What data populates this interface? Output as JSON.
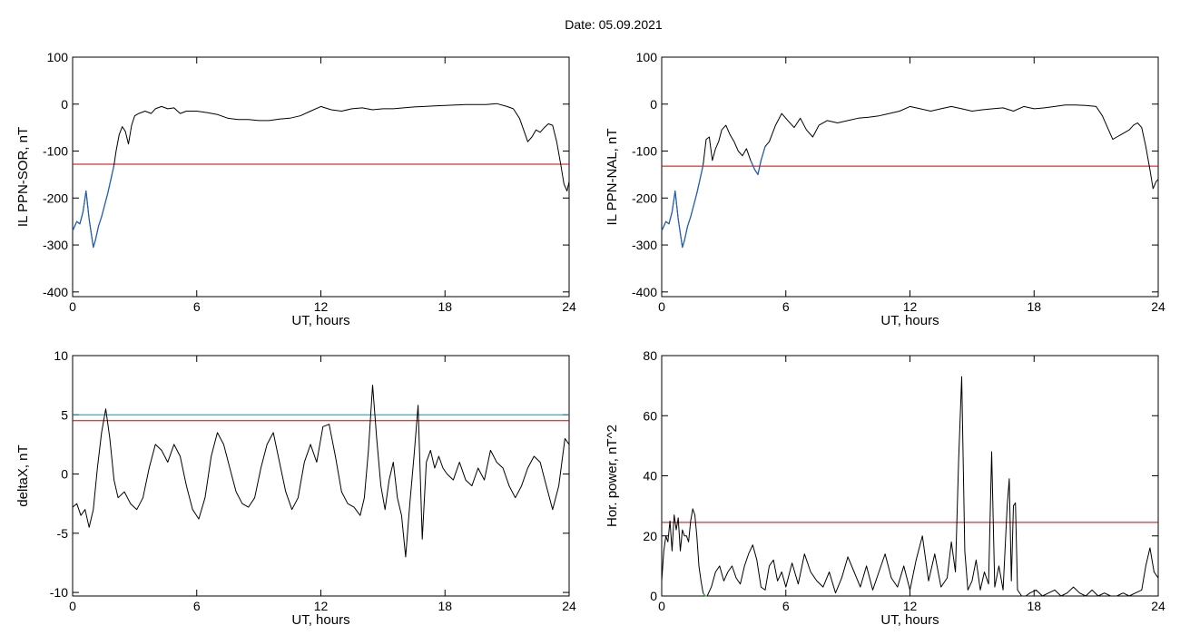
{
  "title": "Date:  05.09.2021",
  "chart_data": [
    {
      "id": "il-ppn-sor",
      "type": "line",
      "xlabel": "UT, hours",
      "ylabel": "IL PPN-SOR, nT",
      "xlim": [
        0,
        24
      ],
      "ylim": [
        -410,
        100
      ],
      "xticks": [
        0,
        6,
        12,
        18,
        24
      ],
      "yticks": [
        -400,
        -300,
        -200,
        -100,
        0,
        100
      ],
      "grid": false,
      "colors": {
        "series": "#000000",
        "highlight": "#1f5fbf",
        "threshold": "#d00000"
      },
      "thresholds": [
        {
          "y": -128,
          "color": "#d00000"
        }
      ],
      "series": [
        {
          "x": [
            0,
            0.2,
            0.35,
            0.5,
            0.65,
            0.8,
            0.9,
            1.0,
            1.1,
            1.25,
            1.4,
            1.55,
            1.7,
            1.85,
            2.0,
            2.1,
            2.25,
            2.4,
            2.55,
            2.7,
            2.85,
            3.0,
            3.2,
            3.5,
            3.8,
            4.0,
            4.3,
            4.6,
            4.9,
            5.2,
            5.5,
            6.0,
            6.5,
            7.0,
            7.5,
            8.0,
            8.5,
            9.0,
            9.5,
            10.0,
            10.5,
            11.0,
            11.5,
            12.0,
            12.5,
            13.0,
            13.5,
            14.0,
            14.5,
            15.0,
            15.5,
            16.0,
            16.5,
            17.0,
            17.5,
            18.0,
            18.5,
            19.0,
            19.5,
            20.0,
            20.5,
            21.0,
            21.3,
            21.6,
            21.8,
            22.0,
            22.2,
            22.4,
            22.6,
            22.8,
            23.0,
            23.2,
            23.4,
            23.6,
            23.75,
            23.9,
            24.0
          ],
          "y": [
            -270,
            -250,
            -255,
            -230,
            -185,
            -245,
            -275,
            -305,
            -290,
            -260,
            -240,
            -215,
            -190,
            -160,
            -130,
            -100,
            -65,
            -48,
            -58,
            -85,
            -45,
            -25,
            -20,
            -15,
            -20,
            -10,
            -5,
            -10,
            -8,
            -20,
            -15,
            -15,
            -18,
            -22,
            -30,
            -33,
            -33,
            -35,
            -35,
            -32,
            -30,
            -25,
            -15,
            -5,
            -12,
            -15,
            -10,
            -8,
            -12,
            -10,
            -10,
            -8,
            -6,
            -5,
            -4,
            -3,
            -2,
            -1,
            -1,
            -1,
            1,
            -5,
            -10,
            -30,
            -55,
            -80,
            -70,
            -55,
            -60,
            -50,
            -42,
            -45,
            -80,
            -130,
            -170,
            -185,
            -165
          ]
        },
        {
          "x": [
            0,
            0.2,
            0.35,
            0.5,
            0.65,
            0.8,
            0.9,
            1.0,
            1.1,
            1.25,
            1.4,
            1.55,
            1.7,
            1.85,
            2.0
          ],
          "y": [
            -270,
            -250,
            -255,
            -230,
            -185,
            -245,
            -275,
            -305,
            -290,
            -260,
            -240,
            -215,
            -190,
            -160,
            -130
          ]
        }
      ]
    },
    {
      "id": "il-ppn-nal",
      "type": "line",
      "xlabel": "UT, hours",
      "ylabel": "IL PPN-NAL, nT",
      "xlim": [
        0,
        24
      ],
      "ylim": [
        -410,
        100
      ],
      "xticks": [
        0,
        6,
        12,
        18,
        24
      ],
      "yticks": [
        -400,
        -300,
        -200,
        -100,
        0,
        100
      ],
      "grid": false,
      "colors": {
        "series": "#000000",
        "highlight": "#1f5fbf",
        "threshold": "#d00000"
      },
      "thresholds": [
        {
          "y": -132,
          "color": "#d00000"
        }
      ],
      "series": [
        {
          "x": [
            0,
            0.2,
            0.35,
            0.5,
            0.65,
            0.8,
            0.9,
            1.0,
            1.1,
            1.25,
            1.4,
            1.55,
            1.7,
            1.85,
            2.0,
            2.15,
            2.3,
            2.45,
            2.6,
            2.75,
            2.9,
            3.1,
            3.3,
            3.5,
            3.7,
            3.9,
            4.1,
            4.3,
            4.5,
            4.65,
            4.8,
            5.0,
            5.2,
            5.5,
            5.8,
            6.1,
            6.4,
            6.7,
            7.0,
            7.3,
            7.6,
            8.0,
            8.5,
            9.0,
            9.5,
            10.0,
            10.5,
            11.0,
            11.5,
            12.0,
            12.5,
            13.0,
            13.5,
            14.0,
            14.5,
            15.0,
            15.5,
            16.0,
            16.5,
            17.0,
            17.5,
            18.0,
            18.5,
            19.0,
            19.5,
            20.0,
            20.5,
            21.0,
            21.3,
            21.6,
            21.8,
            22.0,
            22.2,
            22.4,
            22.6,
            22.8,
            23.0,
            23.2,
            23.4,
            23.6,
            23.75,
            23.9,
            24.0
          ],
          "y": [
            -270,
            -250,
            -255,
            -230,
            -185,
            -245,
            -275,
            -305,
            -290,
            -260,
            -240,
            -215,
            -190,
            -160,
            -130,
            -75,
            -70,
            -120,
            -95,
            -80,
            -55,
            -45,
            -65,
            -80,
            -100,
            -110,
            -95,
            -120,
            -140,
            -150,
            -120,
            -90,
            -80,
            -45,
            -20,
            -35,
            -50,
            -30,
            -55,
            -70,
            -45,
            -35,
            -40,
            -35,
            -30,
            -28,
            -25,
            -20,
            -15,
            -5,
            -10,
            -15,
            -10,
            -5,
            -10,
            -15,
            -12,
            -10,
            -8,
            -15,
            -5,
            -10,
            -8,
            -5,
            -2,
            -2,
            -3,
            -5,
            -25,
            -55,
            -75,
            -70,
            -65,
            -60,
            -55,
            -45,
            -40,
            -50,
            -90,
            -140,
            -180,
            -165,
            -160
          ]
        },
        {
          "x": [
            0,
            0.2,
            0.35,
            0.5,
            0.65,
            0.8,
            0.9,
            1.0,
            1.1,
            1.25,
            1.4,
            1.55,
            1.7,
            1.85,
            2.0
          ],
          "y": [
            -270,
            -250,
            -255,
            -230,
            -185,
            -245,
            -275,
            -305,
            -290,
            -260,
            -240,
            -215,
            -190,
            -160,
            -130
          ]
        },
        {
          "x": [
            4.3,
            4.5,
            4.65,
            4.8,
            5.0
          ],
          "y": [
            -120,
            -140,
            -150,
            -120,
            -90
          ]
        }
      ]
    },
    {
      "id": "deltax",
      "type": "line",
      "xlabel": "UT, hours",
      "ylabel": "deltaX, nT",
      "xlim": [
        0,
        24
      ],
      "ylim": [
        -10.3,
        10
      ],
      "xticks": [
        0,
        6,
        12,
        18,
        24
      ],
      "yticks": [
        -10,
        -5,
        0,
        5,
        10
      ],
      "grid": false,
      "colors": {
        "series": "#000000",
        "threshold": "#d00000",
        "threshold2": "#1f8fa0"
      },
      "thresholds": [
        {
          "y": 5.0,
          "color": "#1f8fa0"
        },
        {
          "y": 4.5,
          "color": "#d00000"
        }
      ],
      "series": [
        {
          "x": [
            0,
            0.2,
            0.4,
            0.6,
            0.8,
            1.0,
            1.2,
            1.4,
            1.6,
            1.8,
            2.0,
            2.2,
            2.5,
            2.8,
            3.1,
            3.4,
            3.7,
            4.0,
            4.3,
            4.6,
            4.9,
            5.2,
            5.5,
            5.8,
            6.1,
            6.4,
            6.7,
            7.0,
            7.3,
            7.6,
            7.9,
            8.2,
            8.5,
            8.8,
            9.1,
            9.4,
            9.7,
            10.0,
            10.3,
            10.6,
            10.9,
            11.2,
            11.5,
            11.8,
            12.1,
            12.4,
            12.7,
            13.0,
            13.3,
            13.6,
            13.9,
            14.1,
            14.3,
            14.5,
            14.7,
            14.9,
            15.1,
            15.3,
            15.5,
            15.7,
            15.9,
            16.1,
            16.3,
            16.5,
            16.7,
            16.9,
            17.1,
            17.3,
            17.5,
            17.7,
            17.9,
            18.1,
            18.4,
            18.7,
            19.0,
            19.3,
            19.6,
            19.9,
            20.2,
            20.5,
            20.8,
            21.1,
            21.4,
            21.7,
            22.0,
            22.3,
            22.6,
            22.9,
            23.2,
            23.5,
            23.8,
            24.0
          ],
          "y": [
            -2.8,
            -2.5,
            -3.5,
            -3.0,
            -4.5,
            -3.0,
            0.5,
            3.5,
            5.5,
            3.0,
            -0.5,
            -2.0,
            -1.5,
            -2.5,
            -3.0,
            -2.0,
            0.5,
            2.5,
            2.0,
            1.0,
            2.5,
            1.5,
            -1.0,
            -3.0,
            -3.8,
            -2.0,
            1.5,
            3.5,
            2.5,
            0.5,
            -1.5,
            -2.5,
            -2.8,
            -2.0,
            0.5,
            2.5,
            3.5,
            1.0,
            -1.5,
            -3.0,
            -2.0,
            1.0,
            2.5,
            1.0,
            4.0,
            4.2,
            1.5,
            -1.5,
            -2.5,
            -2.8,
            -3.5,
            -2.0,
            2.0,
            7.5,
            3.0,
            -1.0,
            -3.0,
            -0.5,
            1.0,
            -2.0,
            -3.5,
            -7.0,
            -2.5,
            1.5,
            5.8,
            -5.5,
            1.0,
            2.0,
            0.5,
            1.5,
            0.5,
            0.0,
            -0.5,
            1.0,
            -0.5,
            -1.0,
            0.5,
            -0.5,
            2.0,
            1.0,
            0.5,
            -1.0,
            -2.0,
            -1.0,
            0.5,
            1.5,
            1.0,
            -1.0,
            -3.0,
            -1.0,
            3.0,
            2.5
          ]
        }
      ]
    },
    {
      "id": "hor-power",
      "type": "line",
      "xlabel": "UT, hours",
      "ylabel": "Hor. power, nT^2",
      "xlim": [
        0,
        24
      ],
      "ylim": [
        0,
        80
      ],
      "xticks": [
        0,
        6,
        12,
        18,
        24
      ],
      "yticks": [
        0,
        20,
        40,
        60,
        80
      ],
      "grid": false,
      "colors": {
        "series": "#000000",
        "threshold": "#d00000",
        "highlight": "#2a9a2a"
      },
      "thresholds": [
        {
          "y": 24.5,
          "color": "#d00000"
        }
      ],
      "series": [
        {
          "x": [
            0,
            0.1,
            0.2,
            0.3,
            0.4,
            0.5,
            0.6,
            0.7,
            0.8,
            0.9,
            1.0,
            1.1,
            1.2,
            1.3,
            1.4,
            1.5,
            1.6,
            1.7,
            1.8,
            1.9,
            2.0,
            2.1,
            2.2,
            2.4,
            2.6,
            2.8,
            3.0,
            3.2,
            3.4,
            3.6,
            3.8,
            4.0,
            4.2,
            4.4,
            4.6,
            4.8,
            5.0,
            5.2,
            5.4,
            5.6,
            5.8,
            6.0,
            6.3,
            6.6,
            6.9,
            7.2,
            7.5,
            7.8,
            8.1,
            8.4,
            8.7,
            9.0,
            9.3,
            9.6,
            9.9,
            10.2,
            10.5,
            10.8,
            11.1,
            11.4,
            11.7,
            12.0,
            12.3,
            12.6,
            12.9,
            13.2,
            13.5,
            13.8,
            14.0,
            14.2,
            14.35,
            14.5,
            14.65,
            14.8,
            15.0,
            15.2,
            15.4,
            15.6,
            15.8,
            15.95,
            16.1,
            16.3,
            16.5,
            16.7,
            16.8,
            16.9,
            17.0,
            17.1,
            17.2,
            17.4,
            17.6,
            17.8,
            18.1,
            18.4,
            18.7,
            19.0,
            19.3,
            19.6,
            19.9,
            20.2,
            20.5,
            20.8,
            21.1,
            21.4,
            21.7,
            22.0,
            22.3,
            22.6,
            22.9,
            23.2,
            23.4,
            23.6,
            23.8,
            24.0
          ],
          "y": [
            5,
            15,
            20,
            18,
            25,
            15,
            27,
            22,
            26,
            15,
            22,
            20,
            20,
            18,
            25,
            29,
            27,
            20,
            10,
            5,
            1,
            0,
            0,
            3,
            8,
            10,
            5,
            8,
            10,
            6,
            4,
            10,
            14,
            17,
            12,
            3,
            2,
            10,
            12,
            5,
            8,
            3,
            11,
            4,
            14,
            8,
            5,
            3,
            8,
            1,
            6,
            13,
            8,
            3,
            10,
            2,
            8,
            14,
            6,
            3,
            10,
            2,
            12,
            20,
            5,
            14,
            3,
            6,
            18,
            8,
            45,
            73,
            15,
            2,
            5,
            12,
            2,
            8,
            4,
            48,
            3,
            10,
            2,
            30,
            39,
            5,
            30,
            31,
            2,
            0,
            0,
            1,
            2,
            0,
            1,
            2,
            0,
            1,
            3,
            1,
            0,
            2,
            0,
            1,
            0,
            0,
            1,
            0,
            1,
            2,
            10,
            16,
            8,
            6
          ]
        },
        {
          "x": [
            2.0,
            2.1,
            2.2
          ],
          "y": [
            1,
            0,
            0
          ]
        }
      ]
    }
  ]
}
